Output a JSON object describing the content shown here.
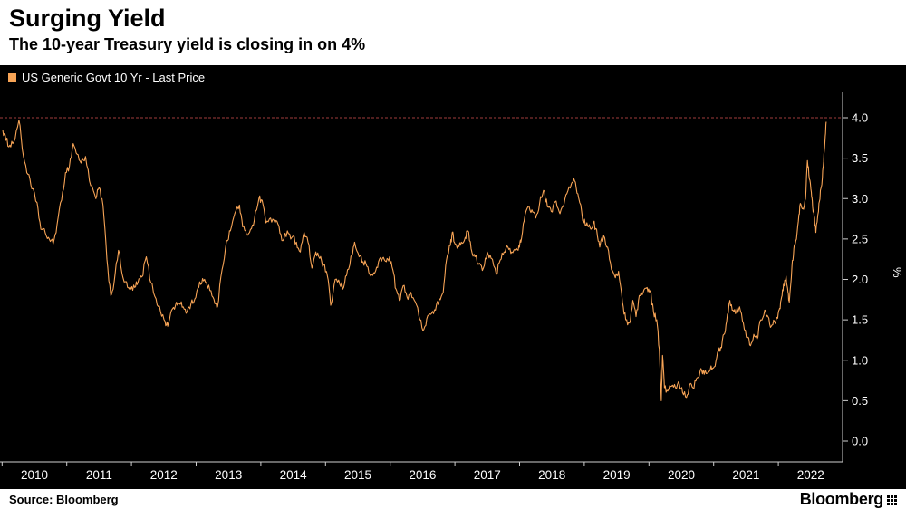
{
  "header": {
    "title": "Surging Yield",
    "subtitle": "The 10-year Treasury yield is closing in on 4%"
  },
  "legend": {
    "label": "US Generic Govt 10 Yr - Last Price"
  },
  "footer": {
    "source": "Source:  Bloomberg",
    "logo": "Bloomberg"
  },
  "colors": {
    "panel_bg": "#000000",
    "line": "#f7a456",
    "reference": "#a03b3b",
    "axis": "#cfcfcf",
    "text": "#ffffff"
  },
  "chart_data": {
    "type": "line",
    "title": "Surging Yield",
    "subtitle": "The 10-year Treasury yield is closing in on 4%",
    "legend_entries": [
      "US Generic Govt 10 Yr - Last Price"
    ],
    "xlabel": "",
    "ylabel": "%",
    "ylim": [
      0.0,
      4.0
    ],
    "yticks": [
      0.0,
      0.5,
      1.0,
      1.5,
      2.0,
      2.5,
      3.0,
      3.5,
      4.0
    ],
    "xticks": [
      2010,
      2011,
      2012,
      2013,
      2014,
      2015,
      2016,
      2017,
      2018,
      2019,
      2020,
      2021,
      2022
    ],
    "grid": false,
    "legend_position": "top-left",
    "reference_line": {
      "value": 4.0,
      "style": "dashed",
      "color": "#a03b3b"
    },
    "series": [
      {
        "name": "US Generic Govt 10 Yr - Last Price",
        "color": "#f7a456",
        "points": [
          [
            2010.01,
            3.85
          ],
          [
            2010.06,
            3.72
          ],
          [
            2010.12,
            3.66
          ],
          [
            2010.18,
            3.7
          ],
          [
            2010.26,
            3.97
          ],
          [
            2010.33,
            3.52
          ],
          [
            2010.4,
            3.3
          ],
          [
            2010.46,
            3.12
          ],
          [
            2010.54,
            2.95
          ],
          [
            2010.6,
            2.62
          ],
          [
            2010.67,
            2.57
          ],
          [
            2010.73,
            2.5
          ],
          [
            2010.79,
            2.44
          ],
          [
            2010.85,
            2.68
          ],
          [
            2010.92,
            2.98
          ],
          [
            2010.98,
            3.32
          ],
          [
            2011.04,
            3.4
          ],
          [
            2011.1,
            3.68
          ],
          [
            2011.16,
            3.55
          ],
          [
            2011.22,
            3.44
          ],
          [
            2011.29,
            3.52
          ],
          [
            2011.37,
            3.16
          ],
          [
            2011.45,
            3.0
          ],
          [
            2011.5,
            3.14
          ],
          [
            2011.56,
            2.92
          ],
          [
            2011.62,
            2.25
          ],
          [
            2011.68,
            1.8
          ],
          [
            2011.73,
            1.95
          ],
          [
            2011.8,
            2.36
          ],
          [
            2011.87,
            2.02
          ],
          [
            2011.94,
            1.9
          ],
          [
            2011.99,
            1.88
          ],
          [
            2012.05,
            1.9
          ],
          [
            2012.1,
            1.96
          ],
          [
            2012.16,
            2.03
          ],
          [
            2012.23,
            2.28
          ],
          [
            2012.3,
            1.96
          ],
          [
            2012.38,
            1.76
          ],
          [
            2012.45,
            1.6
          ],
          [
            2012.52,
            1.48
          ],
          [
            2012.56,
            1.42
          ],
          [
            2012.62,
            1.62
          ],
          [
            2012.68,
            1.68
          ],
          [
            2012.74,
            1.7
          ],
          [
            2012.8,
            1.66
          ],
          [
            2012.86,
            1.6
          ],
          [
            2012.92,
            1.7
          ],
          [
            2012.98,
            1.76
          ],
          [
            2013.04,
            1.9
          ],
          [
            2013.1,
            2.01
          ],
          [
            2013.16,
            1.96
          ],
          [
            2013.23,
            1.86
          ],
          [
            2013.29,
            1.7
          ],
          [
            2013.33,
            1.66
          ],
          [
            2013.4,
            2.12
          ],
          [
            2013.47,
            2.48
          ],
          [
            2013.53,
            2.6
          ],
          [
            2013.6,
            2.82
          ],
          [
            2013.67,
            2.92
          ],
          [
            2013.72,
            2.65
          ],
          [
            2013.78,
            2.55
          ],
          [
            2013.84,
            2.62
          ],
          [
            2013.9,
            2.74
          ],
          [
            2013.97,
            3.0
          ],
          [
            2014.02,
            2.98
          ],
          [
            2014.08,
            2.7
          ],
          [
            2014.15,
            2.76
          ],
          [
            2014.22,
            2.7
          ],
          [
            2014.28,
            2.66
          ],
          [
            2014.34,
            2.48
          ],
          [
            2014.41,
            2.6
          ],
          [
            2014.48,
            2.52
          ],
          [
            2014.55,
            2.46
          ],
          [
            2014.61,
            2.34
          ],
          [
            2014.67,
            2.58
          ],
          [
            2014.73,
            2.46
          ],
          [
            2014.79,
            2.14
          ],
          [
            2014.85,
            2.34
          ],
          [
            2014.91,
            2.26
          ],
          [
            2014.97,
            2.18
          ],
          [
            2015.03,
            2.04
          ],
          [
            2015.08,
            1.68
          ],
          [
            2015.15,
            2.0
          ],
          [
            2015.22,
            1.94
          ],
          [
            2015.28,
            1.9
          ],
          [
            2015.34,
            2.12
          ],
          [
            2015.41,
            2.3
          ],
          [
            2015.45,
            2.46
          ],
          [
            2015.52,
            2.28
          ],
          [
            2015.58,
            2.22
          ],
          [
            2015.64,
            2.16
          ],
          [
            2015.7,
            2.04
          ],
          [
            2015.76,
            2.08
          ],
          [
            2015.82,
            2.22
          ],
          [
            2015.88,
            2.26
          ],
          [
            2015.94,
            2.22
          ],
          [
            2015.99,
            2.28
          ],
          [
            2016.04,
            2.12
          ],
          [
            2016.09,
            1.88
          ],
          [
            2016.14,
            1.74
          ],
          [
            2016.2,
            1.92
          ],
          [
            2016.26,
            1.78
          ],
          [
            2016.32,
            1.84
          ],
          [
            2016.39,
            1.72
          ],
          [
            2016.46,
            1.5
          ],
          [
            2016.52,
            1.38
          ],
          [
            2016.58,
            1.55
          ],
          [
            2016.64,
            1.58
          ],
          [
            2016.7,
            1.62
          ],
          [
            2016.76,
            1.76
          ],
          [
            2016.82,
            1.84
          ],
          [
            2016.87,
            2.24
          ],
          [
            2016.93,
            2.42
          ],
          [
            2016.96,
            2.58
          ],
          [
            2016.99,
            2.46
          ],
          [
            2017.05,
            2.42
          ],
          [
            2017.1,
            2.46
          ],
          [
            2017.16,
            2.52
          ],
          [
            2017.2,
            2.6
          ],
          [
            2017.25,
            2.38
          ],
          [
            2017.31,
            2.28
          ],
          [
            2017.38,
            2.2
          ],
          [
            2017.44,
            2.14
          ],
          [
            2017.5,
            2.34
          ],
          [
            2017.56,
            2.26
          ],
          [
            2017.64,
            2.06
          ],
          [
            2017.7,
            2.24
          ],
          [
            2017.76,
            2.34
          ],
          [
            2017.82,
            2.4
          ],
          [
            2017.88,
            2.34
          ],
          [
            2017.94,
            2.36
          ],
          [
            2017.99,
            2.42
          ],
          [
            2018.02,
            2.46
          ],
          [
            2018.07,
            2.72
          ],
          [
            2018.13,
            2.9
          ],
          [
            2018.19,
            2.86
          ],
          [
            2018.25,
            2.76
          ],
          [
            2018.31,
            2.94
          ],
          [
            2018.37,
            3.1
          ],
          [
            2018.43,
            2.9
          ],
          [
            2018.49,
            2.84
          ],
          [
            2018.55,
            2.96
          ],
          [
            2018.61,
            2.84
          ],
          [
            2018.67,
            2.9
          ],
          [
            2018.73,
            3.06
          ],
          [
            2018.8,
            3.18
          ],
          [
            2018.85,
            3.22
          ],
          [
            2018.9,
            3.06
          ],
          [
            2018.96,
            2.84
          ],
          [
            2018.99,
            2.7
          ],
          [
            2019.04,
            2.7
          ],
          [
            2019.09,
            2.64
          ],
          [
            2019.14,
            2.7
          ],
          [
            2019.19,
            2.62
          ],
          [
            2019.24,
            2.4
          ],
          [
            2019.3,
            2.54
          ],
          [
            2019.36,
            2.4
          ],
          [
            2019.42,
            2.12
          ],
          [
            2019.48,
            2.02
          ],
          [
            2019.53,
            2.1
          ],
          [
            2019.59,
            1.72
          ],
          [
            2019.64,
            1.5
          ],
          [
            2019.7,
            1.46
          ],
          [
            2019.75,
            1.74
          ],
          [
            2019.8,
            1.54
          ],
          [
            2019.85,
            1.8
          ],
          [
            2019.91,
            1.84
          ],
          [
            2019.97,
            1.9
          ],
          [
            2020.02,
            1.86
          ],
          [
            2020.07,
            1.6
          ],
          [
            2020.12,
            1.5
          ],
          [
            2020.16,
            1.14
          ],
          [
            2020.19,
            0.5
          ],
          [
            2020.21,
            1.06
          ],
          [
            2020.24,
            0.66
          ],
          [
            2020.29,
            0.62
          ],
          [
            2020.35,
            0.68
          ],
          [
            2020.41,
            0.66
          ],
          [
            2020.47,
            0.7
          ],
          [
            2020.52,
            0.6
          ],
          [
            2020.58,
            0.54
          ],
          [
            2020.63,
            0.7
          ],
          [
            2020.68,
            0.66
          ],
          [
            2020.74,
            0.78
          ],
          [
            2020.79,
            0.86
          ],
          [
            2020.84,
            0.88
          ],
          [
            2020.9,
            0.84
          ],
          [
            2020.96,
            0.93
          ],
          [
            2021.01,
            0.92
          ],
          [
            2021.06,
            1.1
          ],
          [
            2021.11,
            1.16
          ],
          [
            2021.16,
            1.32
          ],
          [
            2021.2,
            1.48
          ],
          [
            2021.25,
            1.74
          ],
          [
            2021.3,
            1.62
          ],
          [
            2021.35,
            1.6
          ],
          [
            2021.4,
            1.66
          ],
          [
            2021.46,
            1.46
          ],
          [
            2021.52,
            1.28
          ],
          [
            2021.57,
            1.18
          ],
          [
            2021.62,
            1.32
          ],
          [
            2021.67,
            1.26
          ],
          [
            2021.73,
            1.5
          ],
          [
            2021.79,
            1.62
          ],
          [
            2021.84,
            1.54
          ],
          [
            2021.89,
            1.42
          ],
          [
            2021.94,
            1.48
          ],
          [
            2021.99,
            1.52
          ],
          [
            2022.02,
            1.64
          ],
          [
            2022.05,
            1.78
          ],
          [
            2022.08,
            1.94
          ],
          [
            2022.12,
            2.04
          ],
          [
            2022.15,
            1.84
          ],
          [
            2022.17,
            1.72
          ],
          [
            2022.21,
            2.16
          ],
          [
            2022.24,
            2.38
          ],
          [
            2022.27,
            2.48
          ],
          [
            2022.31,
            2.72
          ],
          [
            2022.34,
            2.94
          ],
          [
            2022.38,
            2.88
          ],
          [
            2022.42,
            3.0
          ],
          [
            2022.45,
            3.47
          ],
          [
            2022.48,
            3.24
          ],
          [
            2022.51,
            3.08
          ],
          [
            2022.53,
            2.9
          ],
          [
            2022.56,
            2.76
          ],
          [
            2022.58,
            2.58
          ],
          [
            2022.62,
            2.84
          ],
          [
            2022.65,
            3.1
          ],
          [
            2022.68,
            3.26
          ],
          [
            2022.7,
            3.46
          ],
          [
            2022.72,
            3.7
          ],
          [
            2022.74,
            3.95
          ]
        ]
      }
    ]
  }
}
